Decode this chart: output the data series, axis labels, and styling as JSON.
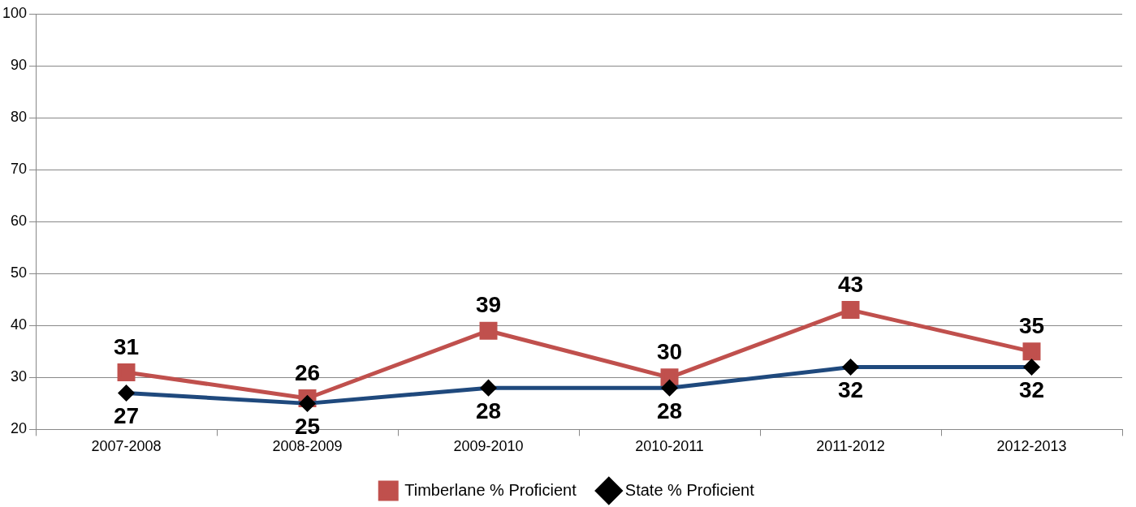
{
  "chart_data": {
    "type": "line",
    "categories": [
      "2007-2008",
      "2008-2009",
      "2009-2010",
      "2010-2011",
      "2011-2012",
      "2012-2013"
    ],
    "series": [
      {
        "name": "Timberlane % Proficient",
        "color": "#c0504d",
        "marker": "square",
        "values": [
          31,
          26,
          39,
          30,
          43,
          35
        ]
      },
      {
        "name": "State % Proficient",
        "color": "#1f497d",
        "marker": "diamond",
        "values": [
          27,
          25,
          28,
          28,
          32,
          32
        ]
      }
    ],
    "ylim": [
      20,
      100
    ],
    "yticks": [
      20,
      30,
      40,
      50,
      60,
      70,
      80,
      90,
      100
    ],
    "grid": "y",
    "legend": "bottom",
    "data_labels": true
  }
}
